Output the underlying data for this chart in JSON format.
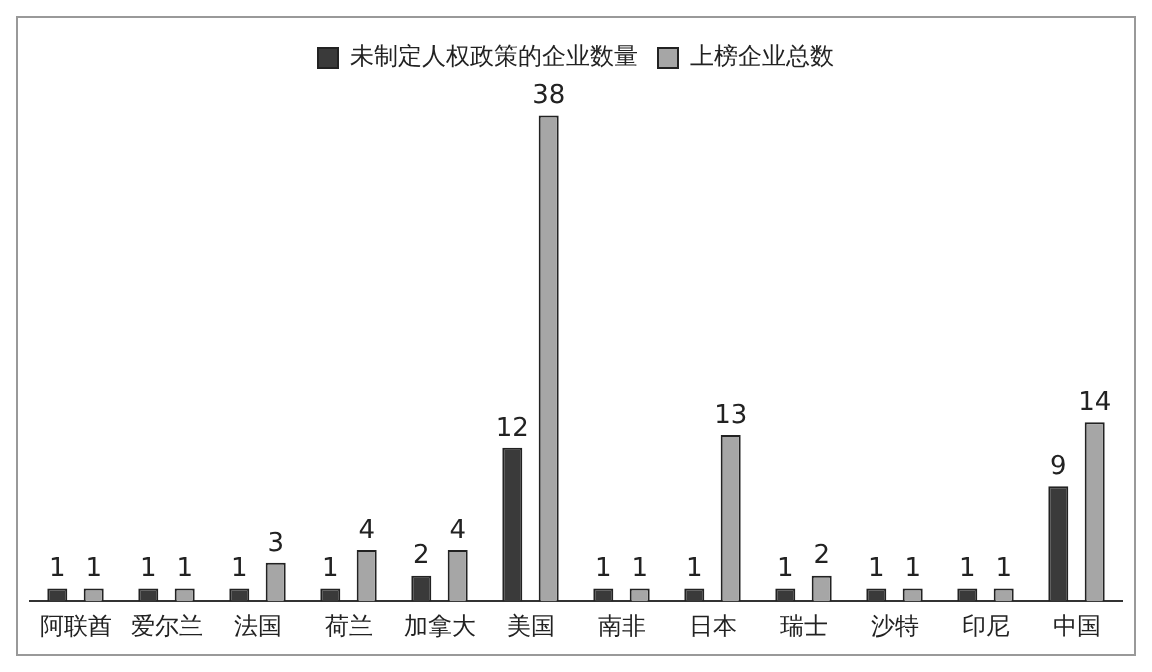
{
  "chart_data": {
    "type": "bar",
    "categories": [
      "阿联酋",
      "爱尔兰",
      "法国",
      "荷兰",
      "加拿大",
      "美国",
      "南非",
      "日本",
      "瑞士",
      "沙特",
      "印尼",
      "中国"
    ],
    "series": [
      {
        "name": "未制定人权政策的企业数量",
        "color": "#3a3a3a",
        "values": [
          1,
          1,
          1,
          1,
          2,
          12,
          1,
          1,
          1,
          1,
          1,
          9
        ]
      },
      {
        "name": "上榜企业总数",
        "color": "#a6a6a6",
        "values": [
          1,
          1,
          3,
          4,
          4,
          38,
          1,
          13,
          2,
          1,
          1,
          14
        ]
      }
    ],
    "data_labels": true,
    "legend": "top",
    "grid": false
  }
}
